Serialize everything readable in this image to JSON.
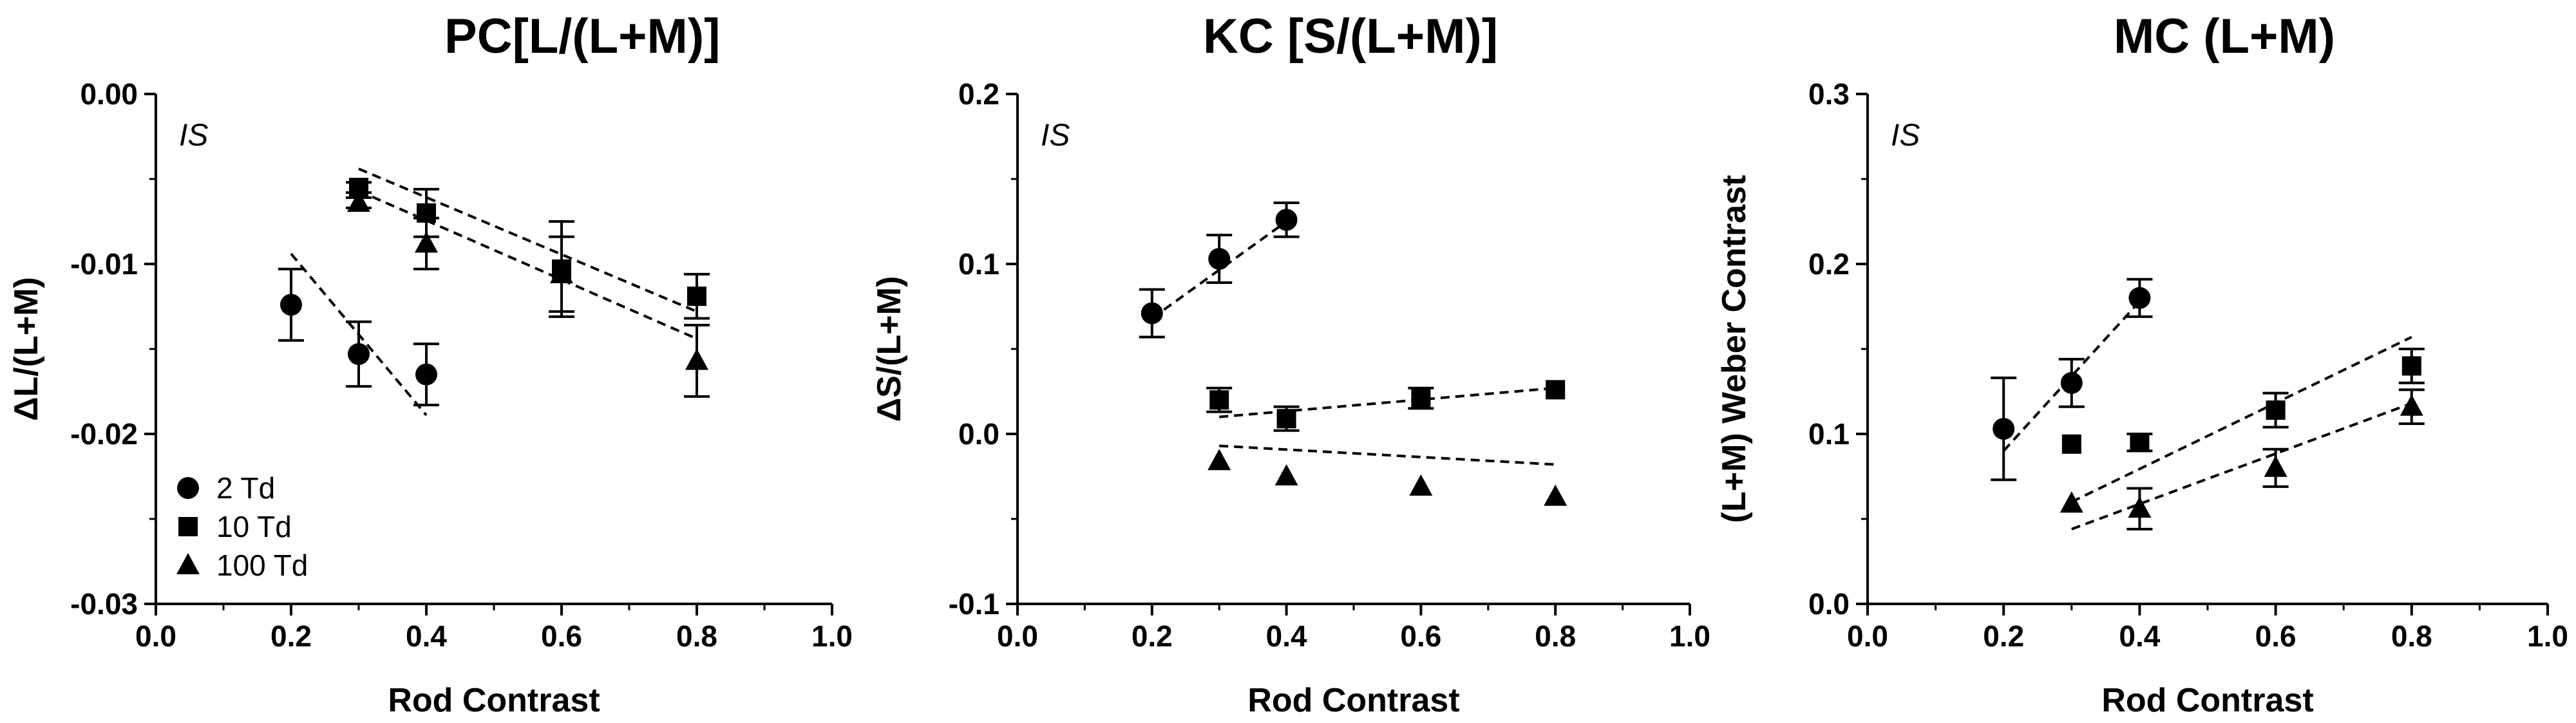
{
  "chart_data": [
    {
      "type": "scatter",
      "title": "PC[L/(L+M)]",
      "xlabel": "Rod Contrast",
      "ylabel": "ΔL/(L+M)",
      "annotation": "IS",
      "xlim": [
        0.0,
        1.0
      ],
      "ylim": [
        -0.03,
        0.0
      ],
      "xticks": [
        0.0,
        0.2,
        0.4,
        0.6,
        0.8,
        1.0
      ],
      "xtick_labels": [
        "0.0",
        "0.2",
        "0.4",
        "0.6",
        "0.8",
        "1.0"
      ],
      "yticks": [
        -0.03,
        -0.02,
        -0.01,
        0.0
      ],
      "ytick_labels": [
        "-0.03",
        "-0.02",
        "-0.01",
        "0.00"
      ],
      "legend": [
        {
          "label": "2 Td",
          "marker": "circle"
        },
        {
          "label": "10 Td",
          "marker": "square"
        },
        {
          "label": "100 Td",
          "marker": "triangle"
        }
      ],
      "series": [
        {
          "name": "2 Td",
          "marker": "circle",
          "x": [
            0.2,
            0.3,
            0.4
          ],
          "y": [
            -0.0124,
            -0.0153,
            -0.0165
          ],
          "err": [
            0.0021,
            0.0019,
            0.0018
          ],
          "fit": {
            "x": [
              0.2,
              0.4
            ],
            "y": [
              -0.0094,
              -0.0189
            ]
          }
        },
        {
          "name": "10 Td",
          "marker": "square",
          "x": [
            0.3,
            0.4,
            0.6,
            0.8
          ],
          "y": [
            -0.0055,
            -0.007,
            -0.0103,
            -0.0119
          ],
          "err": [
            0.0003,
            0.0014,
            0.0028,
            0.0013
          ],
          "fit": {
            "x": [
              0.3,
              0.8
            ],
            "y": [
              -0.0044,
              -0.0128
            ]
          }
        },
        {
          "name": "100 Td",
          "marker": "triangle",
          "x": [
            0.3,
            0.4,
            0.6,
            0.8
          ],
          "y": [
            -0.0064,
            -0.0088,
            -0.0106,
            -0.0157
          ],
          "err": [
            0.0003,
            0.0015,
            0.0022,
            0.0021
          ],
          "fit": {
            "x": [
              0.3,
              0.8
            ],
            "y": [
              -0.0057,
              -0.0144
            ]
          }
        }
      ]
    },
    {
      "type": "scatter",
      "title": "KC [S/(L+M)]",
      "xlabel": "Rod Contrast",
      "ylabel": "ΔS/(L+M)",
      "annotation": "IS",
      "xlim": [
        0.0,
        1.0
      ],
      "ylim": [
        -0.1,
        0.2
      ],
      "xticks": [
        0.0,
        0.2,
        0.4,
        0.6,
        0.8,
        1.0
      ],
      "xtick_labels": [
        "0.0",
        "0.2",
        "0.4",
        "0.6",
        "0.8",
        "1.0"
      ],
      "yticks": [
        -0.1,
        0.0,
        0.1,
        0.2
      ],
      "ytick_labels": [
        "-0.1",
        "0.0",
        "0.1",
        "0.2"
      ],
      "series": [
        {
          "name": "2 Td",
          "marker": "circle",
          "x": [
            0.2,
            0.3,
            0.4
          ],
          "y": [
            0.071,
            0.103,
            0.126
          ],
          "err": [
            0.014,
            0.014,
            0.01
          ],
          "fit": {
            "x": [
              0.2,
              0.4
            ],
            "y": [
              0.068,
              0.125
            ]
          }
        },
        {
          "name": "10 Td",
          "marker": "square",
          "x": [
            0.3,
            0.4,
            0.6,
            0.8
          ],
          "y": [
            0.02,
            0.009,
            0.021,
            0.026
          ],
          "err": [
            0.007,
            0.007,
            0.006,
            0.0
          ],
          "fit": {
            "x": [
              0.3,
              0.8
            ],
            "y": [
              0.01,
              0.027
            ]
          }
        },
        {
          "name": "100 Td",
          "marker": "triangle",
          "x": [
            0.3,
            0.4,
            0.6,
            0.8
          ],
          "y": [
            -0.016,
            -0.025,
            -0.031,
            -0.037
          ],
          "err": [
            0.0,
            0.0,
            0.0,
            0.0
          ],
          "fit": {
            "x": [
              0.3,
              0.8
            ],
            "y": [
              -0.007,
              -0.018
            ]
          }
        }
      ]
    },
    {
      "type": "scatter",
      "title": "MC (L+M)",
      "xlabel": "Rod Contrast",
      "ylabel": "(L+M) Weber Contrast",
      "annotation": "IS",
      "xlim": [
        0.0,
        1.0
      ],
      "ylim": [
        0.0,
        0.3
      ],
      "xticks": [
        0.0,
        0.2,
        0.4,
        0.6,
        0.8,
        1.0
      ],
      "xtick_labels": [
        "0.0",
        "0.2",
        "0.4",
        "0.6",
        "0.8",
        "1.0"
      ],
      "yticks": [
        0.0,
        0.1,
        0.2,
        0.3
      ],
      "ytick_labels": [
        "0.0",
        "0.1",
        "0.2",
        "0.3"
      ],
      "series": [
        {
          "name": "2 Td",
          "marker": "circle",
          "x": [
            0.2,
            0.3,
            0.4
          ],
          "y": [
            0.103,
            0.13,
            0.18
          ],
          "err": [
            0.03,
            0.014,
            0.011
          ],
          "fit": {
            "x": [
              0.2,
              0.4
            ],
            "y": [
              0.09,
              0.178
            ]
          }
        },
        {
          "name": "10 Td",
          "marker": "square",
          "x": [
            0.3,
            0.4,
            0.6,
            0.8
          ],
          "y": [
            0.094,
            0.095,
            0.114,
            0.14
          ],
          "err": [
            0.0,
            0.005,
            0.01,
            0.01
          ],
          "fit": {
            "x": [
              0.3,
              0.8
            ],
            "y": [
              0.06,
              0.157
            ]
          }
        },
        {
          "name": "100 Td",
          "marker": "triangle",
          "x": [
            0.3,
            0.4,
            0.6,
            0.8
          ],
          "y": [
            0.059,
            0.056,
            0.08,
            0.116
          ],
          "err": [
            0.0,
            0.012,
            0.011,
            0.01
          ],
          "fit": {
            "x": [
              0.3,
              0.8
            ],
            "y": [
              0.044,
              0.118
            ]
          }
        }
      ]
    }
  ]
}
